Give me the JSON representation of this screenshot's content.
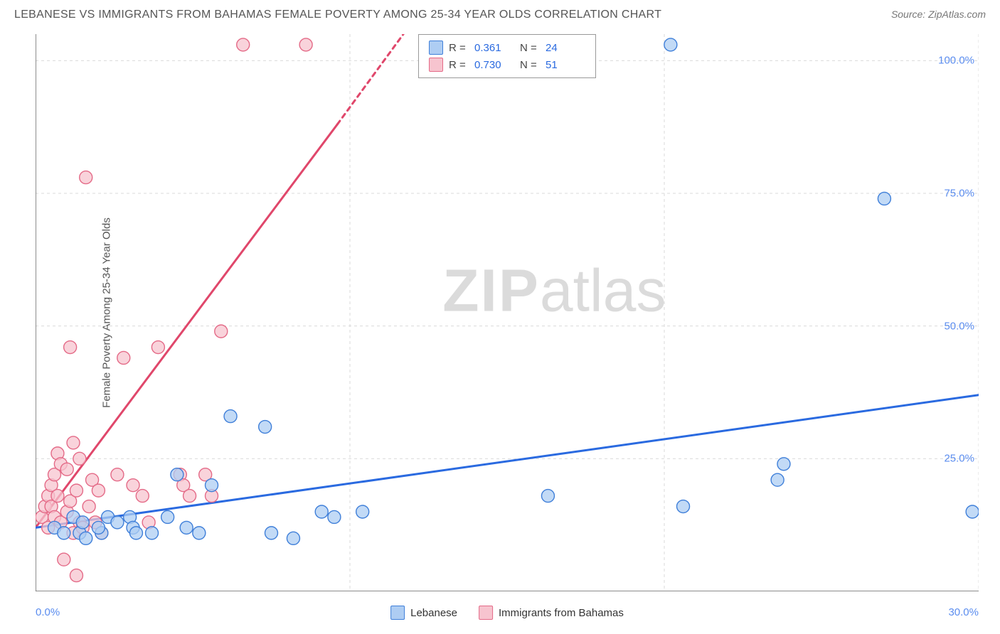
{
  "header": {
    "title": "LEBANESE VS IMMIGRANTS FROM BAHAMAS FEMALE POVERTY AMONG 25-34 YEAR OLDS CORRELATION CHART",
    "source": "Source: ZipAtlas.com"
  },
  "axes": {
    "y_label": "Female Poverty Among 25-34 Year Olds",
    "x_min": 0.0,
    "x_max": 30.0,
    "y_min": 0.0,
    "y_max": 105.0,
    "y_ticks": [
      25.0,
      50.0,
      75.0,
      100.0
    ],
    "y_tick_labels": [
      "25.0%",
      "50.0%",
      "75.0%",
      "100.0%"
    ],
    "x_ticks_major": [
      0.0,
      10.0,
      20.0,
      30.0
    ],
    "x_ticks_minor": [
      2.0,
      4.0,
      6.0,
      8.0,
      12.0,
      14.0,
      16.0,
      18.0,
      22.0,
      24.0,
      26.0,
      28.0
    ],
    "x_tick_labels": {
      "0.0": "0.0%",
      "30.0": "30.0%"
    },
    "grid_color": "#d9d9d9",
    "axis_color": "#666666",
    "background_color": "#ffffff"
  },
  "watermark": {
    "text_bold": "ZIP",
    "text_light": "atlas"
  },
  "series": {
    "lebanese": {
      "label": "Lebanese",
      "fill": "#aecdf3",
      "stroke": "#3f7fd9",
      "line_color": "#2a6ae0",
      "line_width": 3,
      "marker_radius": 9,
      "regression": {
        "x1": 0.0,
        "y1": 12.0,
        "x2": 30.0,
        "y2": 37.0
      },
      "R": 0.361,
      "N": 24,
      "points": [
        [
          0.6,
          12
        ],
        [
          0.9,
          11
        ],
        [
          1.4,
          11
        ],
        [
          1.2,
          14
        ],
        [
          1.5,
          13
        ],
        [
          1.6,
          10
        ],
        [
          2.1,
          11
        ],
        [
          2.3,
          14
        ],
        [
          2.0,
          12
        ],
        [
          2.6,
          13
        ],
        [
          3.0,
          14
        ],
        [
          3.1,
          12
        ],
        [
          3.2,
          11
        ],
        [
          3.7,
          11
        ],
        [
          4.2,
          14
        ],
        [
          4.5,
          22
        ],
        [
          4.8,
          12
        ],
        [
          5.2,
          11
        ],
        [
          5.6,
          20
        ],
        [
          6.2,
          33
        ],
        [
          7.3,
          31
        ],
        [
          7.5,
          11
        ],
        [
          8.2,
          10
        ],
        [
          9.1,
          15
        ],
        [
          9.5,
          14
        ],
        [
          10.4,
          15
        ],
        [
          16.3,
          18
        ],
        [
          20.6,
          16
        ],
        [
          20.2,
          103
        ],
        [
          23.6,
          21
        ],
        [
          23.8,
          24
        ],
        [
          27.0,
          74
        ],
        [
          29.8,
          15
        ]
      ]
    },
    "bahamas": {
      "label": "Immigrants from Bahamas",
      "fill": "#f7c4cf",
      "stroke": "#e46a87",
      "line_color": "#e0476b",
      "line_width": 3,
      "marker_radius": 9,
      "regression": {
        "solid": {
          "x1": 0.0,
          "y1": 12.0,
          "x2": 9.6,
          "y2": 88.0
        },
        "dashed": {
          "x1": 9.6,
          "y1": 88.0,
          "x2": 11.7,
          "y2": 105.0
        }
      },
      "R": 0.73,
      "N": 51,
      "points": [
        [
          0.2,
          14
        ],
        [
          0.3,
          16
        ],
        [
          0.4,
          12
        ],
        [
          0.4,
          18
        ],
        [
          0.5,
          16
        ],
        [
          0.5,
          20
        ],
        [
          0.6,
          14
        ],
        [
          0.6,
          22
        ],
        [
          0.7,
          18
        ],
        [
          0.7,
          26
        ],
        [
          0.8,
          13
        ],
        [
          0.8,
          24
        ],
        [
          0.9,
          6
        ],
        [
          1.0,
          15
        ],
        [
          1.0,
          23
        ],
        [
          1.1,
          17
        ],
        [
          1.1,
          46
        ],
        [
          1.2,
          11
        ],
        [
          1.2,
          28
        ],
        [
          1.3,
          3
        ],
        [
          1.3,
          19
        ],
        [
          1.4,
          13
        ],
        [
          1.4,
          25
        ],
        [
          1.5,
          12
        ],
        [
          1.6,
          78
        ],
        [
          1.7,
          16
        ],
        [
          1.8,
          21
        ],
        [
          1.9,
          13
        ],
        [
          2.0,
          19
        ],
        [
          2.1,
          11
        ],
        [
          2.6,
          22
        ],
        [
          2.8,
          44
        ],
        [
          3.1,
          20
        ],
        [
          3.4,
          18
        ],
        [
          3.6,
          13
        ],
        [
          3.9,
          46
        ],
        [
          4.6,
          22
        ],
        [
          4.7,
          20
        ],
        [
          4.9,
          18
        ],
        [
          5.4,
          22
        ],
        [
          5.6,
          18
        ],
        [
          5.9,
          49
        ],
        [
          6.6,
          103
        ],
        [
          8.6,
          103
        ]
      ]
    }
  },
  "stats_legend": {
    "rows": [
      {
        "swatch": "lebanese",
        "R_label": "R =",
        "R_val": "0.361",
        "N_label": "N =",
        "N_val": "24"
      },
      {
        "swatch": "bahamas",
        "R_label": "R =",
        "R_val": "0.730",
        "N_label": "N =",
        "N_val": "51"
      }
    ]
  },
  "bottom_legend": {
    "items": [
      {
        "key": "lebanese",
        "label": "Lebanese"
      },
      {
        "key": "bahamas",
        "label": "Immigrants from Bahamas"
      }
    ]
  }
}
